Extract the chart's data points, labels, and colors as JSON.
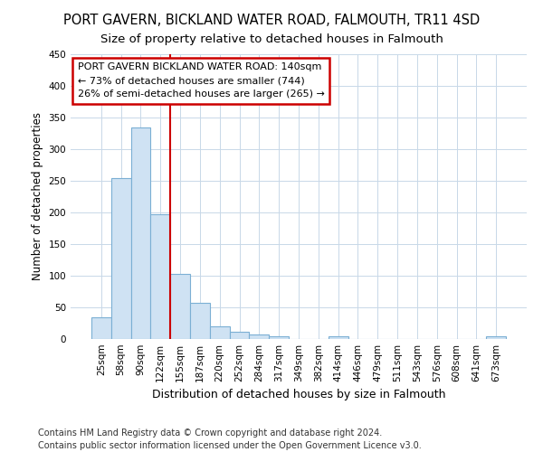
{
  "title": "PORT GAVERN, BICKLAND WATER ROAD, FALMOUTH, TR11 4SD",
  "subtitle": "Size of property relative to detached houses in Falmouth",
  "xlabel": "Distribution of detached houses by size in Falmouth",
  "ylabel": "Number of detached properties",
  "categories": [
    "25sqm",
    "58sqm",
    "90sqm",
    "122sqm",
    "155sqm",
    "187sqm",
    "220sqm",
    "252sqm",
    "284sqm",
    "317sqm",
    "349sqm",
    "382sqm",
    "414sqm",
    "446sqm",
    "479sqm",
    "511sqm",
    "543sqm",
    "576sqm",
    "608sqm",
    "641sqm",
    "673sqm"
  ],
  "values": [
    35,
    255,
    335,
    197,
    103,
    57,
    20,
    11,
    7,
    4,
    0,
    0,
    4,
    0,
    0,
    0,
    0,
    0,
    0,
    0,
    4
  ],
  "bar_color": "#cfe2f3",
  "bar_edge_color": "#7bafd4",
  "annotation_line1": "PORT GAVERN BICKLAND WATER ROAD: 140sqm",
  "annotation_line2": "← 73% of detached houses are smaller (744)",
  "annotation_line3": "26% of semi-detached houses are larger (265) →",
  "annotation_box_color": "#ffffff",
  "annotation_box_edge": "#cc0000",
  "red_line_index": 3.5,
  "ylim": [
    0,
    450
  ],
  "footer": "Contains HM Land Registry data © Crown copyright and database right 2024.\nContains public sector information licensed under the Open Government Licence v3.0.",
  "title_fontsize": 10.5,
  "subtitle_fontsize": 9.5,
  "xlabel_fontsize": 9,
  "ylabel_fontsize": 8.5,
  "tick_fontsize": 7.5,
  "footer_fontsize": 7,
  "annotation_fontsize": 8
}
